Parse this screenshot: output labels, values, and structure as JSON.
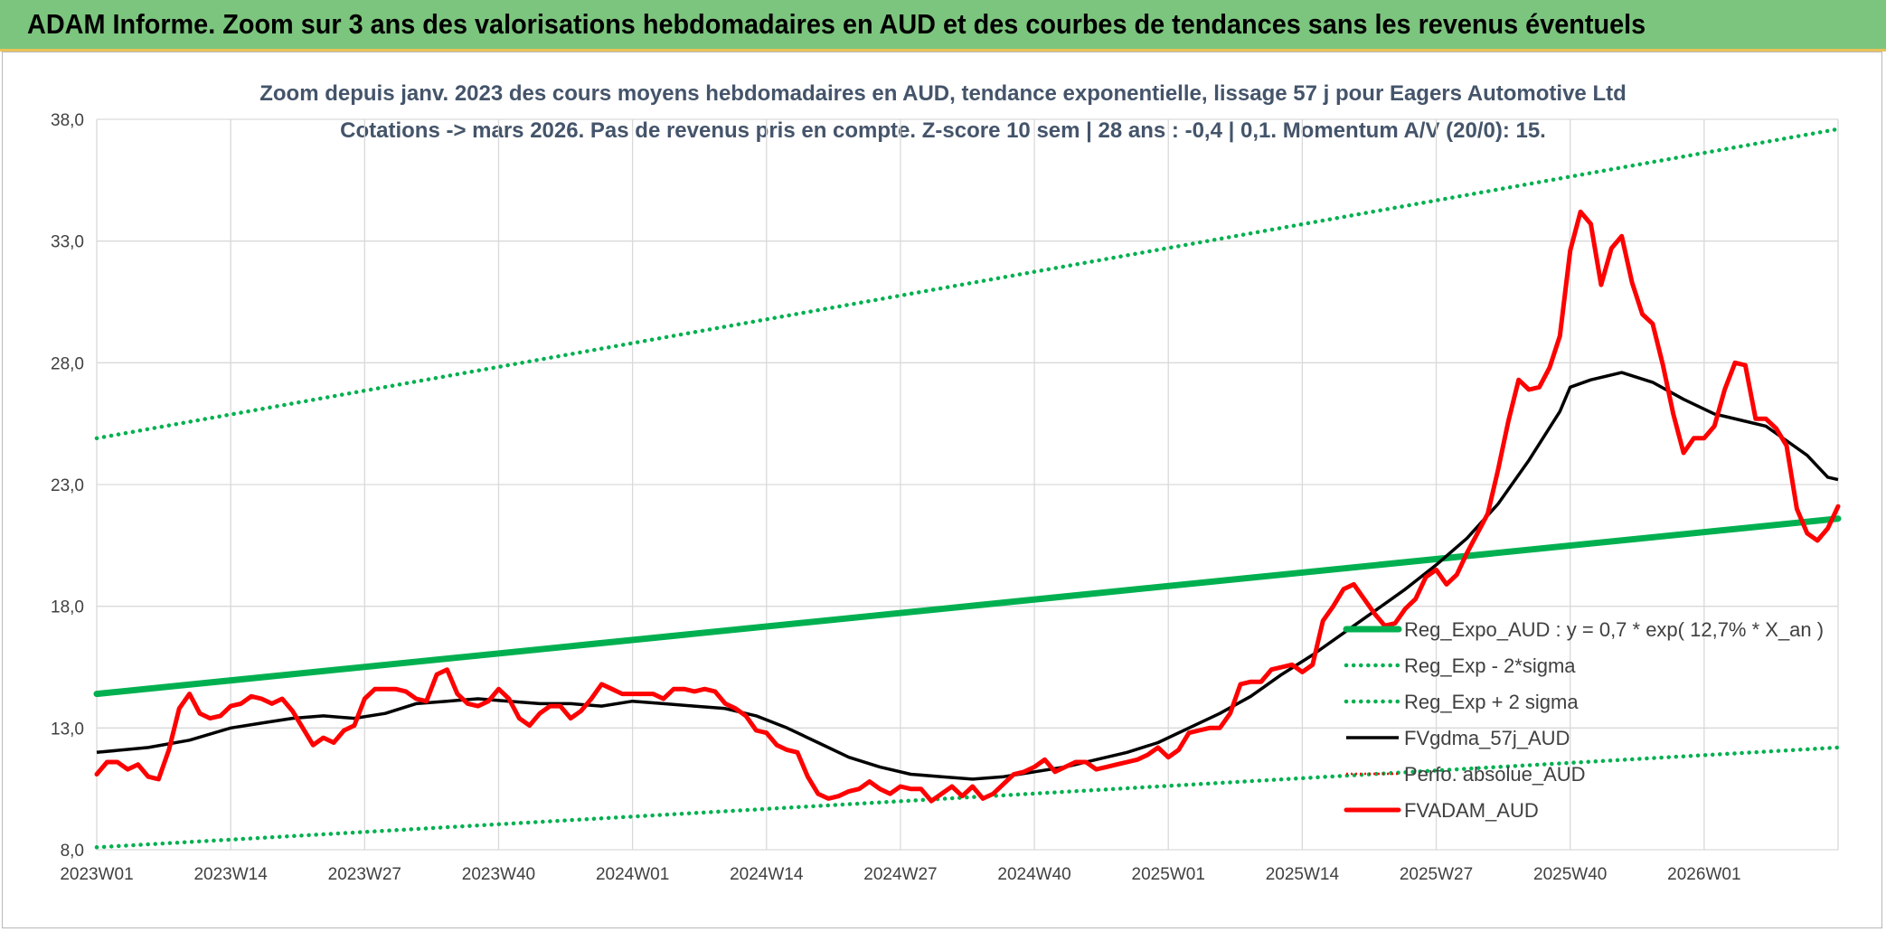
{
  "header": {
    "title": "ADAM Informe. Zoom sur 3 ans des valorisations hebdomadaires en AUD et des courbes de tendances sans les revenus éventuels"
  },
  "colors": {
    "banner": "#7cc57e",
    "trend_green": "#00b050",
    "price_red": "#ff0000",
    "mavg_black": "#000000",
    "title_text": "#44546a"
  },
  "chart_data": {
    "type": "line",
    "title": "Zoom depuis janv. 2023 des cours moyens hebdomadaires en AUD, tendance exponentielle, lissage 57 j pour Eagers Automotive Ltd",
    "subtitle": "Cotations -> mars 2026. Pas de revenus pris en compte. Z-score 10 sem | 28 ans : -0,4 | 0,1. Momentum A/V (20/0): 15.",
    "ylim": [
      8,
      38
    ],
    "yticks": [
      "8,0",
      "13,0",
      "18,0",
      "23,0",
      "28,0",
      "33,0",
      "38,0"
    ],
    "ytick_values": [
      8,
      13,
      18,
      23,
      28,
      33,
      38
    ],
    "x_tick_labels": [
      "2023W01",
      "2023W14",
      "2023W27",
      "2023W40",
      "2024W01",
      "2024W14",
      "2024W27",
      "2024W40",
      "2025W01",
      "2025W14",
      "2025W27",
      "2025W40",
      "2026W01"
    ],
    "x_tick_weeks": [
      0,
      13,
      26,
      39,
      52,
      65,
      78,
      91,
      104,
      117,
      130,
      143,
      156
    ],
    "x_last_week": 169,
    "grid": true,
    "legend_position": "right",
    "series": [
      {
        "name": "Reg_Expo_AUD : y = 0,7 * exp( 12,7% * X_an )",
        "style": "thick",
        "color": "#00b050",
        "points": [
          [
            0,
            14.4
          ],
          [
            169,
            21.6
          ]
        ]
      },
      {
        "name": "Reg_Exp - 2*sigma",
        "style": "dotted",
        "color": "#00b050",
        "points": [
          [
            0,
            8.1
          ],
          [
            169,
            12.2
          ]
        ]
      },
      {
        "name": "Reg_Exp + 2 sigma",
        "style": "dotted",
        "color": "#00b050",
        "points": [
          [
            0,
            24.9
          ],
          [
            169,
            37.6
          ]
        ]
      },
      {
        "name": "FVgdma_57j_AUD",
        "style": "solid",
        "color": "#000000",
        "points": [
          [
            0,
            12.0
          ],
          [
            5,
            12.2
          ],
          [
            9,
            12.5
          ],
          [
            13,
            13.0
          ],
          [
            16,
            13.2
          ],
          [
            19,
            13.4
          ],
          [
            22,
            13.5
          ],
          [
            25,
            13.4
          ],
          [
            28,
            13.6
          ],
          [
            31,
            14.0
          ],
          [
            34,
            14.1
          ],
          [
            37,
            14.2
          ],
          [
            40,
            14.1
          ],
          [
            43,
            14.0
          ],
          [
            46,
            14.0
          ],
          [
            49,
            13.9
          ],
          [
            52,
            14.1
          ],
          [
            55,
            14.0
          ],
          [
            58,
            13.9
          ],
          [
            61,
            13.8
          ],
          [
            64,
            13.5
          ],
          [
            67,
            13.0
          ],
          [
            70,
            12.4
          ],
          [
            73,
            11.8
          ],
          [
            76,
            11.4
          ],
          [
            79,
            11.1
          ],
          [
            82,
            11.0
          ],
          [
            85,
            10.9
          ],
          [
            88,
            11.0
          ],
          [
            91,
            11.2
          ],
          [
            94,
            11.4
          ],
          [
            97,
            11.7
          ],
          [
            100,
            12.0
          ],
          [
            103,
            12.4
          ],
          [
            106,
            13.0
          ],
          [
            109,
            13.6
          ],
          [
            112,
            14.3
          ],
          [
            115,
            15.2
          ],
          [
            118,
            16.0
          ],
          [
            121,
            16.9
          ],
          [
            124,
            17.8
          ],
          [
            127,
            18.7
          ],
          [
            130,
            19.7
          ],
          [
            133,
            20.8
          ],
          [
            136,
            22.2
          ],
          [
            139,
            24.0
          ],
          [
            142,
            26.0
          ],
          [
            143,
            27.0
          ],
          [
            145,
            27.3
          ],
          [
            148,
            27.6
          ],
          [
            151,
            27.2
          ],
          [
            154,
            26.5
          ],
          [
            157,
            25.9
          ],
          [
            160,
            25.6
          ],
          [
            162,
            25.4
          ],
          [
            164,
            24.8
          ],
          [
            166,
            24.2
          ],
          [
            168,
            23.3
          ],
          [
            169,
            23.2
          ]
        ]
      },
      {
        "name": "Perfo. absolue_AUD",
        "style": "dotted-thin",
        "color": "#ff0000",
        "points": []
      },
      {
        "name": "FVADAM_AUD",
        "style": "thick",
        "color": "#ff0000",
        "points": [
          [
            0,
            11.1
          ],
          [
            1,
            11.6
          ],
          [
            2,
            11.6
          ],
          [
            3,
            11.3
          ],
          [
            4,
            11.5
          ],
          [
            5,
            11.0
          ],
          [
            6,
            10.9
          ],
          [
            7,
            12.1
          ],
          [
            8,
            13.8
          ],
          [
            9,
            14.4
          ],
          [
            10,
            13.6
          ],
          [
            11,
            13.4
          ],
          [
            12,
            13.5
          ],
          [
            13,
            13.9
          ],
          [
            14,
            14.0
          ],
          [
            15,
            14.3
          ],
          [
            16,
            14.2
          ],
          [
            17,
            14.0
          ],
          [
            18,
            14.2
          ],
          [
            19,
            13.7
          ],
          [
            20,
            13.0
          ],
          [
            21,
            12.3
          ],
          [
            22,
            12.6
          ],
          [
            23,
            12.4
          ],
          [
            24,
            12.9
          ],
          [
            25,
            13.1
          ],
          [
            26,
            14.2
          ],
          [
            27,
            14.6
          ],
          [
            28,
            14.6
          ],
          [
            29,
            14.6
          ],
          [
            30,
            14.5
          ],
          [
            31,
            14.2
          ],
          [
            32,
            14.1
          ],
          [
            33,
            15.2
          ],
          [
            34,
            15.4
          ],
          [
            35,
            14.4
          ],
          [
            36,
            14.0
          ],
          [
            37,
            13.9
          ],
          [
            38,
            14.1
          ],
          [
            39,
            14.6
          ],
          [
            40,
            14.2
          ],
          [
            41,
            13.4
          ],
          [
            42,
            13.1
          ],
          [
            43,
            13.6
          ],
          [
            44,
            13.9
          ],
          [
            45,
            13.9
          ],
          [
            46,
            13.4
          ],
          [
            47,
            13.7
          ],
          [
            48,
            14.2
          ],
          [
            49,
            14.8
          ],
          [
            50,
            14.6
          ],
          [
            51,
            14.4
          ],
          [
            52,
            14.4
          ],
          [
            53,
            14.4
          ],
          [
            54,
            14.4
          ],
          [
            55,
            14.2
          ],
          [
            56,
            14.6
          ],
          [
            57,
            14.6
          ],
          [
            58,
            14.5
          ],
          [
            59,
            14.6
          ],
          [
            60,
            14.5
          ],
          [
            61,
            14.0
          ],
          [
            62,
            13.8
          ],
          [
            63,
            13.5
          ],
          [
            64,
            12.9
          ],
          [
            65,
            12.8
          ],
          [
            66,
            12.3
          ],
          [
            67,
            12.1
          ],
          [
            68,
            12.0
          ],
          [
            69,
            11.0
          ],
          [
            70,
            10.3
          ],
          [
            71,
            10.1
          ],
          [
            72,
            10.2
          ],
          [
            73,
            10.4
          ],
          [
            74,
            10.5
          ],
          [
            75,
            10.8
          ],
          [
            76,
            10.5
          ],
          [
            77,
            10.3
          ],
          [
            78,
            10.6
          ],
          [
            79,
            10.5
          ],
          [
            80,
            10.5
          ],
          [
            81,
            10.0
          ],
          [
            82,
            10.3
          ],
          [
            83,
            10.6
          ],
          [
            84,
            10.2
          ],
          [
            85,
            10.6
          ],
          [
            86,
            10.1
          ],
          [
            87,
            10.3
          ],
          [
            88,
            10.7
          ],
          [
            89,
            11.1
          ],
          [
            90,
            11.2
          ],
          [
            91,
            11.4
          ],
          [
            92,
            11.7
          ],
          [
            93,
            11.2
          ],
          [
            94,
            11.4
          ],
          [
            95,
            11.6
          ],
          [
            96,
            11.6
          ],
          [
            97,
            11.3
          ],
          [
            98,
            11.4
          ],
          [
            99,
            11.5
          ],
          [
            100,
            11.6
          ],
          [
            101,
            11.7
          ],
          [
            102,
            11.9
          ],
          [
            103,
            12.2
          ],
          [
            104,
            11.8
          ],
          [
            105,
            12.1
          ],
          [
            106,
            12.8
          ],
          [
            107,
            12.9
          ],
          [
            108,
            13.0
          ],
          [
            109,
            13.0
          ],
          [
            110,
            13.6
          ],
          [
            111,
            14.8
          ],
          [
            112,
            14.9
          ],
          [
            113,
            14.9
          ],
          [
            114,
            15.4
          ],
          [
            115,
            15.5
          ],
          [
            116,
            15.6
          ],
          [
            117,
            15.3
          ],
          [
            118,
            15.6
          ],
          [
            119,
            17.4
          ],
          [
            120,
            18.0
          ],
          [
            121,
            18.7
          ],
          [
            122,
            18.9
          ],
          [
            123,
            18.3
          ],
          [
            124,
            17.7
          ],
          [
            125,
            17.2
          ],
          [
            126,
            17.3
          ],
          [
            127,
            17.9
          ],
          [
            128,
            18.3
          ],
          [
            129,
            19.2
          ],
          [
            130,
            19.5
          ],
          [
            131,
            18.9
          ],
          [
            132,
            19.3
          ],
          [
            133,
            20.2
          ],
          [
            134,
            21.0
          ],
          [
            135,
            21.8
          ],
          [
            136,
            23.6
          ],
          [
            137,
            25.6
          ],
          [
            138,
            27.3
          ],
          [
            139,
            26.9
          ],
          [
            140,
            27.0
          ],
          [
            141,
            27.8
          ],
          [
            142,
            29.1
          ],
          [
            143,
            32.6
          ],
          [
            144,
            34.2
          ],
          [
            145,
            33.7
          ],
          [
            146,
            31.2
          ],
          [
            147,
            32.7
          ],
          [
            148,
            33.2
          ],
          [
            149,
            31.3
          ],
          [
            150,
            30.0
          ],
          [
            151,
            29.6
          ],
          [
            152,
            27.9
          ],
          [
            153,
            25.9
          ],
          [
            154,
            24.3
          ],
          [
            155,
            24.9
          ],
          [
            156,
            24.9
          ],
          [
            157,
            25.4
          ],
          [
            158,
            26.9
          ],
          [
            159,
            28.0
          ],
          [
            160,
            27.9
          ],
          [
            161,
            25.7
          ],
          [
            162,
            25.7
          ],
          [
            163,
            25.3
          ],
          [
            164,
            24.6
          ],
          [
            165,
            22.0
          ],
          [
            166,
            21.0
          ],
          [
            167,
            20.7
          ],
          [
            168,
            21.2
          ],
          [
            169,
            22.1
          ]
        ]
      }
    ]
  }
}
